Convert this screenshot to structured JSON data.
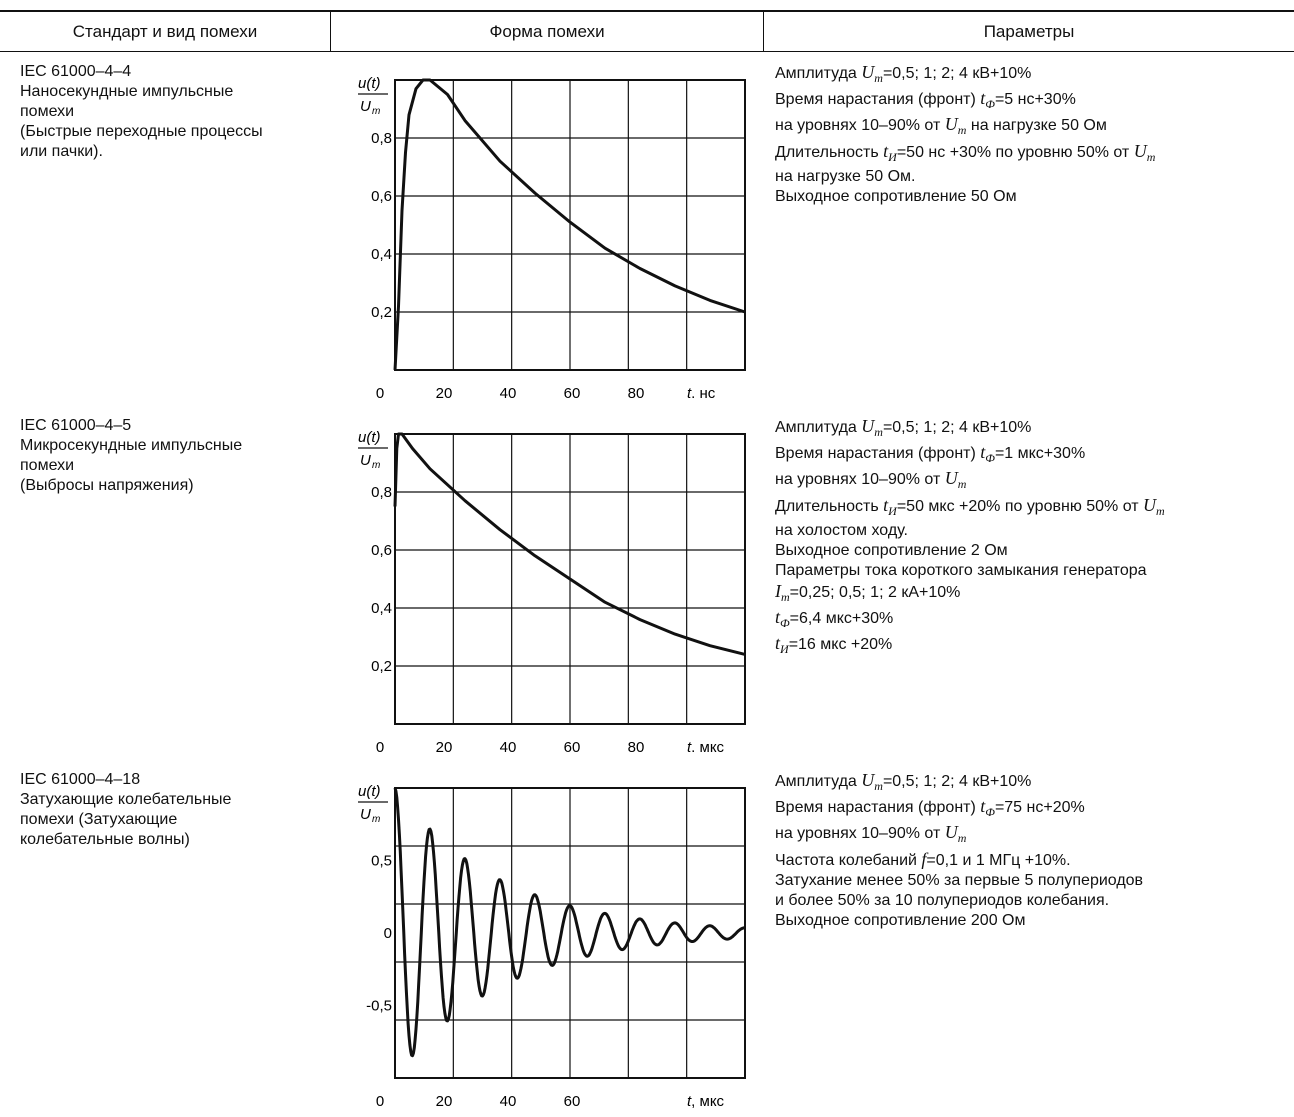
{
  "header": {
    "col_standard": "Стандарт и вид помехи",
    "col_shape": "Форма помехи",
    "col_params": "Параметры"
  },
  "rows": [
    {
      "standard": [
        "IEC 61000–4–4",
        "Наносекундные импульсные",
        "помехи",
        "(Быстрые переходные процессы",
        "или пачки)."
      ],
      "params": [
        [
          "Амплитуда ",
          {
            "m": "U",
            "s": "m"
          },
          "=0,5; 1; 2; 4 кВ+10%"
        ],
        [
          "Время нарастания (фронт) ",
          {
            "m": "t",
            "s": "Ф"
          },
          "=5 нс+30%"
        ],
        [
          "на уровнях 10–90% от ",
          {
            "m": "U",
            "s": "m"
          },
          " на нагрузке 50 Ом"
        ],
        [
          "Длительность ",
          {
            "m": "t",
            "s": "И"
          },
          "=50 нс +30% по уровню 50% от ",
          {
            "m": "U",
            "s": "m"
          }
        ],
        [
          "на нагрузке 50 Ом."
        ],
        [
          "Выходное сопротивление 50 Ом"
        ]
      ]
    },
    {
      "standard": [
        "IEC 61000–4–5",
        "Микросекундные импульсные",
        "помехи",
        "(Выбросы напряжения)"
      ],
      "params": [
        [
          "Амплитуда ",
          {
            "m": "U",
            "s": "m"
          },
          "=0,5; 1; 2; 4 кВ+10%"
        ],
        [
          "Время нарастания (фронт) ",
          {
            "m": "t",
            "s": "Ф"
          },
          "=1 мкс+30%"
        ],
        [
          "на уровнях 10–90% от ",
          {
            "m": "U",
            "s": "m"
          }
        ],
        [
          "Длительность ",
          {
            "m": "t",
            "s": "И"
          },
          "=50 мкс +20% по уровню 50% от ",
          {
            "m": "U",
            "s": "m"
          }
        ],
        [
          "на холостом ходу."
        ],
        [
          "Выходное сопротивление 2 Ом"
        ],
        [
          "Параметры тока короткого замыкания генератора"
        ],
        [
          {
            "m": "I",
            "s": "m"
          },
          "=0,25; 0,5; 1; 2 кА+10%"
        ],
        [
          {
            "m": "t",
            "s": "Ф"
          },
          "=6,4 мкс+30%"
        ],
        [
          {
            "m": "t",
            "s": "И"
          },
          "=16 мкс +20%"
        ]
      ]
    },
    {
      "standard": [
        "IEC 61000–4–18",
        "Затухающие колебательные",
        "помехи (Затухающие",
        "колебательные волны)"
      ],
      "params": [
        [
          "Амплитуда ",
          {
            "m": "U",
            "s": "m"
          },
          "=0,5; 1; 2; 4 кВ+10%"
        ],
        [
          "Время нарастания (фронт) ",
          {
            "m": "t",
            "s": "Ф"
          },
          "=75 нс+20%"
        ],
        [
          "на уровнях 10–90% от ",
          {
            "m": "U",
            "s": "m"
          }
        ],
        [
          "Частота колебаний ",
          {
            "m": "f",
            "s": ""
          },
          "=0,1 и 1 МГц +10%."
        ],
        [
          "Затухание менее 50% за первые 5 полупериодов"
        ],
        [
          "и более 50% за 10 полупериодов колебания."
        ],
        [
          "Выходное сопротивление 200 Ом"
        ]
      ]
    }
  ],
  "chart_data": [
    {
      "type": "line",
      "ylabel_num": "u(t)",
      "ylabel_den": "U",
      "ylabel_den_sub": "m",
      "x_ticks": [
        "0",
        "20",
        "40",
        "60",
        "80"
      ],
      "y_ticks": [
        "0,2",
        "0,4",
        "0,6",
        "0,8"
      ],
      "xlabel_var": "t",
      "xlabel_unit": ", нс",
      "xlim": [
        0,
        100
      ],
      "ylim": [
        0,
        1.0
      ],
      "series": [
        {
          "x": [
            0,
            1,
            2,
            3,
            4,
            6,
            8,
            10,
            15,
            20,
            30,
            40,
            50,
            60,
            70,
            80,
            90,
            100
          ],
          "y": [
            0,
            0.22,
            0.55,
            0.75,
            0.88,
            0.97,
            1.0,
            1.0,
            0.95,
            0.86,
            0.72,
            0.61,
            0.51,
            0.42,
            0.35,
            0.29,
            0.24,
            0.2
          ]
        }
      ]
    },
    {
      "type": "line",
      "ylabel_num": "u(t)",
      "ylabel_den": "U",
      "ylabel_den_sub": "m",
      "x_ticks": [
        "0",
        "20",
        "40",
        "60",
        "80"
      ],
      "y_ticks": [
        "0,2",
        "0,4",
        "0,6",
        "0,8"
      ],
      "xlabel_var": "t",
      "xlabel_unit": ", мкс",
      "xlim": [
        0,
        100
      ],
      "ylim": [
        0,
        1.0
      ],
      "series": [
        {
          "x": [
            0,
            0.5,
            1,
            2,
            5,
            10,
            20,
            30,
            40,
            50,
            60,
            70,
            80,
            90,
            100
          ],
          "y": [
            0.75,
            0.95,
            1.0,
            1.0,
            0.95,
            0.88,
            0.77,
            0.67,
            0.58,
            0.5,
            0.42,
            0.36,
            0.31,
            0.27,
            0.24
          ]
        }
      ]
    },
    {
      "type": "line",
      "ylabel_num": "u(t)",
      "ylabel_den": "U",
      "ylabel_den_sub": "m",
      "x_ticks": [
        "0",
        "20",
        "40",
        "60"
      ],
      "y_ticks": [
        "0,5",
        "0",
        "-0,5"
      ],
      "xlabel_var": "t",
      "xlabel_unit": ", мкс",
      "xlim": [
        0,
        100
      ],
      "ylim": [
        -1.0,
        1.0
      ],
      "series": [
        {
          "x": [
            0,
            2.5,
            5,
            7.5,
            10,
            12.5,
            15,
            17.5,
            20,
            22.5,
            25,
            27.5,
            30,
            32.5,
            35,
            37.5,
            40,
            42.5,
            45,
            47.5,
            50,
            52.5,
            55,
            57.5,
            60,
            62.5,
            65,
            67.5,
            70,
            72.5,
            75,
            77.5,
            80,
            82.5,
            85,
            87.5,
            90,
            92.5,
            95,
            97.5,
            100
          ],
          "y": [
            1.0,
            0.0,
            -0.88,
            0.0,
            0.72,
            0.0,
            -0.7,
            0.0,
            0.55,
            0.0,
            -0.54,
            0.0,
            0.44,
            0.0,
            -0.42,
            0.0,
            0.33,
            0.0,
            -0.32,
            0.0,
            0.26,
            0.0,
            -0.22,
            0.0,
            0.2,
            0.0,
            -0.17,
            0.0,
            0.13,
            0.0,
            -0.12,
            0.0,
            0.09,
            0.0,
            -0.07,
            0.0,
            0.06,
            0.0,
            -0.05,
            0.0,
            0.04
          ]
        }
      ]
    }
  ]
}
